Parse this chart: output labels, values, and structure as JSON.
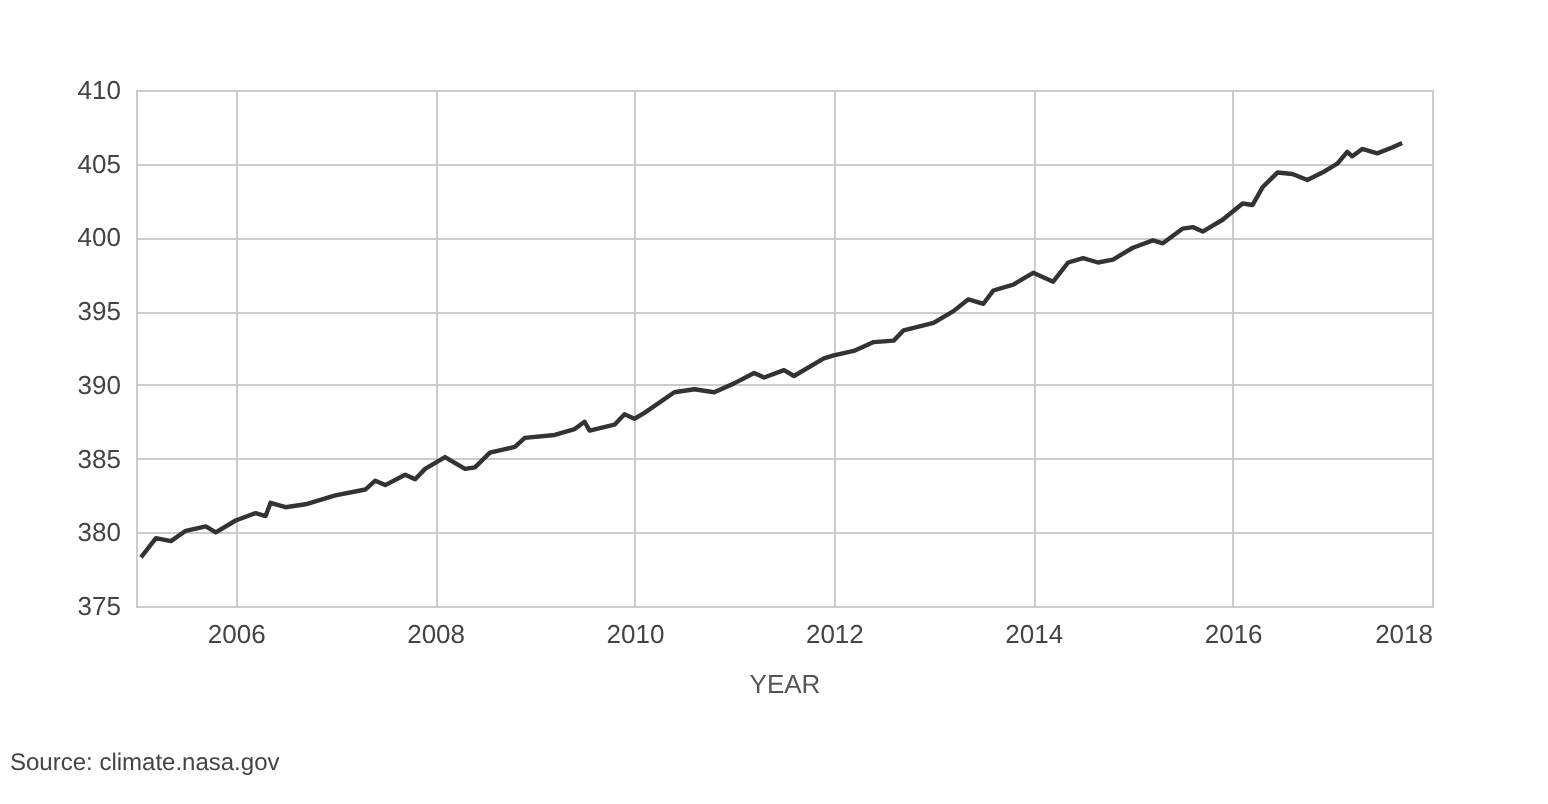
{
  "chart_data": {
    "type": "line",
    "xlabel": "YEAR",
    "annotations": [
      "Source: climate.nasa.gov"
    ],
    "xlim": [
      2005,
      2018
    ],
    "xticks": [
      2006,
      2008,
      2010,
      2012,
      2014,
      2016,
      2018
    ],
    "ylim": [
      375,
      410
    ],
    "yticks": [
      375,
      380,
      385,
      390,
      395,
      400,
      405,
      410
    ],
    "grid": true,
    "x": [
      2005.05,
      2005.2,
      2005.35,
      2005.5,
      2005.7,
      2005.8,
      2006.0,
      2006.2,
      2006.3,
      2006.35,
      2006.5,
      2006.7,
      2007.0,
      2007.3,
      2007.4,
      2007.5,
      2007.7,
      2007.8,
      2007.9,
      2008.1,
      2008.3,
      2008.4,
      2008.55,
      2008.8,
      2008.9,
      2009.2,
      2009.4,
      2009.5,
      2009.55,
      2009.8,
      2009.9,
      2010.0,
      2010.1,
      2010.4,
      2010.6,
      2010.8,
      2011.0,
      2011.2,
      2011.3,
      2011.5,
      2011.6,
      2011.9,
      2012.0,
      2012.2,
      2012.4,
      2012.6,
      2012.7,
      2013.0,
      2013.2,
      2013.35,
      2013.5,
      2013.6,
      2013.8,
      2013.9,
      2014.0,
      2014.1,
      2014.2,
      2014.35,
      2014.5,
      2014.65,
      2014.8,
      2015.0,
      2015.2,
      2015.3,
      2015.5,
      2015.6,
      2015.7,
      2015.8,
      2015.9,
      2016.1,
      2016.2,
      2016.3,
      2016.45,
      2016.6,
      2016.75,
      2016.9,
      2017.05,
      2017.15,
      2017.2,
      2017.3,
      2017.45,
      2017.6,
      2017.7
    ],
    "series": [
      {
        "color": "#333333",
        "values": [
          378.3,
          379.6,
          379.4,
          380.1,
          380.4,
          380.0,
          380.8,
          381.3,
          381.1,
          382.0,
          381.7,
          381.9,
          382.5,
          382.9,
          383.5,
          383.2,
          383.9,
          383.6,
          384.3,
          385.1,
          384.3,
          384.4,
          385.4,
          385.8,
          386.4,
          386.6,
          387.0,
          387.5,
          386.9,
          387.3,
          388.0,
          387.7,
          388.1,
          389.5,
          389.7,
          389.5,
          390.1,
          390.8,
          390.5,
          391.0,
          390.6,
          391.8,
          392.0,
          392.3,
          392.9,
          393.0,
          393.7,
          394.2,
          395.0,
          395.8,
          395.5,
          396.4,
          396.8,
          397.2,
          397.6,
          397.3,
          397.0,
          398.3,
          398.6,
          398.3,
          398.5,
          399.3,
          399.8,
          399.6,
          400.6,
          400.7,
          400.4,
          400.8,
          401.2,
          402.3,
          402.2,
          403.4,
          404.4,
          404.3,
          403.9,
          404.4,
          405.0,
          405.8,
          405.5,
          406.0,
          405.7,
          406.1,
          406.4
        ]
      }
    ]
  }
}
